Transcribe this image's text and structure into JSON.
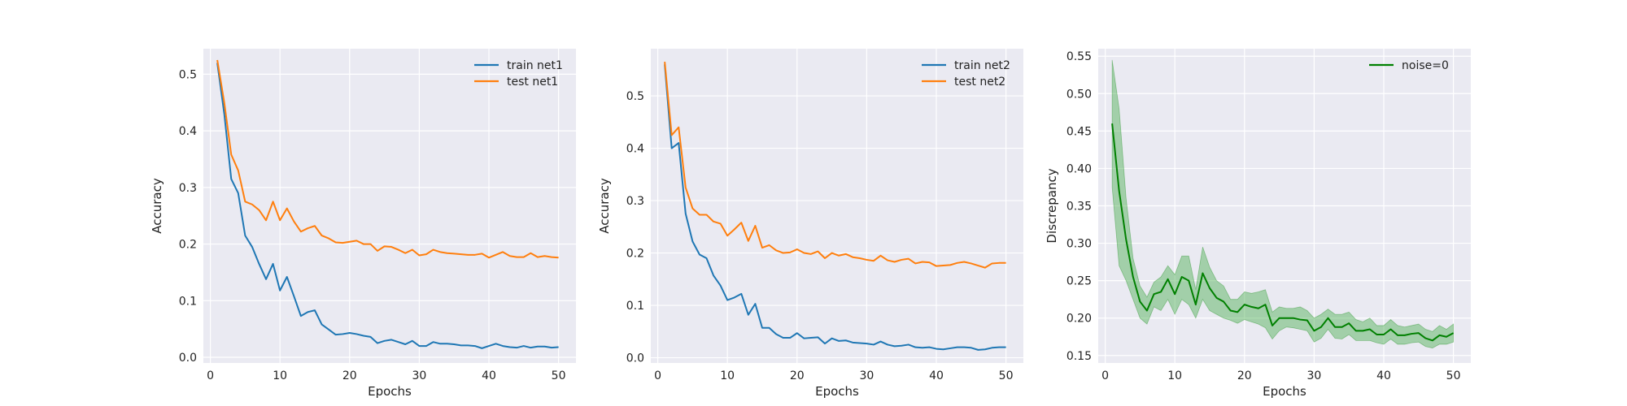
{
  "chart_data": [
    {
      "type": "line",
      "xlabel": "Epochs",
      "ylabel": "Accuracy",
      "xlim": [
        -1,
        52.5
      ],
      "ylim": [
        -0.01,
        0.545
      ],
      "xticks": [
        0,
        10,
        20,
        30,
        40,
        50
      ],
      "yticks": [
        0.0,
        0.1,
        0.2,
        0.3,
        0.4,
        0.5
      ],
      "ytick_labels": [
        "0.0",
        "0.1",
        "0.2",
        "0.3",
        "0.4",
        "0.5"
      ],
      "legend_position": "top-right",
      "grid": true,
      "x": [
        1,
        2,
        3,
        4,
        5,
        6,
        7,
        8,
        9,
        10,
        11,
        12,
        13,
        14,
        15,
        16,
        17,
        18,
        19,
        20,
        21,
        22,
        23,
        24,
        25,
        26,
        27,
        28,
        29,
        30,
        31,
        32,
        33,
        34,
        35,
        36,
        37,
        38,
        39,
        40,
        41,
        42,
        43,
        44,
        45,
        46,
        47,
        48,
        49,
        50
      ],
      "series": [
        {
          "name": "train net1",
          "color": "#1f77b4",
          "values": [
            0.52,
            0.43,
            0.315,
            0.29,
            0.215,
            0.195,
            0.165,
            0.138,
            0.165,
            0.118,
            0.142,
            0.108,
            0.073,
            0.08,
            0.083,
            0.058,
            0.049,
            0.04,
            0.041,
            0.043,
            0.041,
            0.038,
            0.036,
            0.025,
            0.029,
            0.031,
            0.027,
            0.023,
            0.029,
            0.02,
            0.02,
            0.027,
            0.024,
            0.024,
            0.023,
            0.021,
            0.021,
            0.02,
            0.016,
            0.02,
            0.024,
            0.02,
            0.018,
            0.017,
            0.02,
            0.017,
            0.019,
            0.019,
            0.017,
            0.018
          ]
        },
        {
          "name": "test net1",
          "color": "#ff7f0e",
          "values": [
            0.525,
            0.45,
            0.358,
            0.33,
            0.275,
            0.27,
            0.26,
            0.242,
            0.275,
            0.242,
            0.263,
            0.24,
            0.222,
            0.228,
            0.232,
            0.215,
            0.21,
            0.203,
            0.202,
            0.204,
            0.206,
            0.2,
            0.2,
            0.188,
            0.196,
            0.195,
            0.19,
            0.184,
            0.19,
            0.18,
            0.182,
            0.19,
            0.186,
            0.184,
            0.183,
            0.182,
            0.181,
            0.181,
            0.183,
            0.176,
            0.181,
            0.186,
            0.179,
            0.177,
            0.177,
            0.184,
            0.177,
            0.179,
            0.177,
            0.176
          ]
        }
      ]
    },
    {
      "type": "line",
      "xlabel": "Epochs",
      "ylabel": "Accuracy",
      "xlim": [
        -1,
        52.5
      ],
      "ylim": [
        -0.01,
        0.59
      ],
      "xticks": [
        0,
        10,
        20,
        30,
        40,
        50
      ],
      "yticks": [
        0.0,
        0.1,
        0.2,
        0.3,
        0.4,
        0.5
      ],
      "ytick_labels": [
        "0.0",
        "0.1",
        "0.2",
        "0.3",
        "0.4",
        "0.5"
      ],
      "legend_position": "top-right",
      "grid": true,
      "x": [
        1,
        2,
        3,
        4,
        5,
        6,
        7,
        8,
        9,
        10,
        11,
        12,
        13,
        14,
        15,
        16,
        17,
        18,
        19,
        20,
        21,
        22,
        23,
        24,
        25,
        26,
        27,
        28,
        29,
        30,
        31,
        32,
        33,
        34,
        35,
        36,
        37,
        38,
        39,
        40,
        41,
        42,
        43,
        44,
        45,
        46,
        47,
        48,
        49,
        50
      ],
      "series": [
        {
          "name": "train net2",
          "color": "#1f77b4",
          "values": [
            0.56,
            0.4,
            0.41,
            0.275,
            0.222,
            0.197,
            0.19,
            0.157,
            0.138,
            0.11,
            0.115,
            0.122,
            0.082,
            0.103,
            0.057,
            0.057,
            0.045,
            0.038,
            0.038,
            0.047,
            0.037,
            0.038,
            0.039,
            0.027,
            0.037,
            0.032,
            0.033,
            0.029,
            0.028,
            0.027,
            0.025,
            0.031,
            0.025,
            0.022,
            0.023,
            0.025,
            0.02,
            0.019,
            0.02,
            0.017,
            0.016,
            0.018,
            0.02,
            0.02,
            0.019,
            0.015,
            0.016,
            0.019,
            0.02,
            0.02
          ]
        },
        {
          "name": "test net2",
          "color": "#ff7f0e",
          "values": [
            0.565,
            0.425,
            0.44,
            0.325,
            0.285,
            0.273,
            0.273,
            0.26,
            0.256,
            0.233,
            0.245,
            0.258,
            0.223,
            0.252,
            0.21,
            0.215,
            0.205,
            0.2,
            0.201,
            0.207,
            0.2,
            0.198,
            0.203,
            0.19,
            0.2,
            0.195,
            0.198,
            0.192,
            0.19,
            0.187,
            0.185,
            0.195,
            0.186,
            0.183,
            0.187,
            0.189,
            0.18,
            0.183,
            0.182,
            0.175,
            0.176,
            0.177,
            0.181,
            0.183,
            0.18,
            0.176,
            0.172,
            0.18,
            0.181,
            0.181
          ]
        }
      ]
    },
    {
      "type": "line",
      "xlabel": "Epochs",
      "ylabel": "Discrepancy",
      "xlim": [
        -1,
        52.5
      ],
      "ylim": [
        0.14,
        0.56
      ],
      "xticks": [
        0,
        10,
        20,
        30,
        40,
        50
      ],
      "yticks": [
        0.15,
        0.2,
        0.25,
        0.3,
        0.35,
        0.4,
        0.45,
        0.5,
        0.55
      ],
      "ytick_labels": [
        "0.15",
        "0.20",
        "0.25",
        "0.30",
        "0.35",
        "0.40",
        "0.45",
        "0.50",
        "0.55"
      ],
      "legend_position": "top-right",
      "grid": true,
      "x": [
        1,
        2,
        3,
        4,
        5,
        6,
        7,
        8,
        9,
        10,
        11,
        12,
        13,
        14,
        15,
        16,
        17,
        18,
        19,
        20,
        21,
        22,
        23,
        24,
        25,
        26,
        27,
        28,
        29,
        30,
        31,
        32,
        33,
        34,
        35,
        36,
        37,
        38,
        39,
        40,
        41,
        42,
        43,
        44,
        45,
        46,
        47,
        48,
        49,
        50
      ],
      "series": [
        {
          "name": "noise=0",
          "color": "#008000",
          "band_color": "#4caf50",
          "values": [
            0.46,
            0.37,
            0.305,
            0.255,
            0.222,
            0.21,
            0.232,
            0.235,
            0.252,
            0.232,
            0.255,
            0.25,
            0.218,
            0.26,
            0.24,
            0.227,
            0.222,
            0.21,
            0.208,
            0.218,
            0.215,
            0.213,
            0.218,
            0.19,
            0.2,
            0.2,
            0.2,
            0.198,
            0.197,
            0.183,
            0.188,
            0.2,
            0.188,
            0.188,
            0.193,
            0.183,
            0.183,
            0.185,
            0.178,
            0.178,
            0.185,
            0.177,
            0.177,
            0.179,
            0.18,
            0.173,
            0.17,
            0.177,
            0.175,
            0.18
          ],
          "lower": [
            0.375,
            0.27,
            0.25,
            0.225,
            0.2,
            0.192,
            0.215,
            0.21,
            0.225,
            0.205,
            0.225,
            0.218,
            0.2,
            0.225,
            0.21,
            0.205,
            0.2,
            0.197,
            0.193,
            0.198,
            0.195,
            0.192,
            0.187,
            0.172,
            0.183,
            0.188,
            0.187,
            0.185,
            0.183,
            0.168,
            0.173,
            0.185,
            0.173,
            0.172,
            0.178,
            0.17,
            0.17,
            0.17,
            0.167,
            0.165,
            0.172,
            0.165,
            0.165,
            0.167,
            0.168,
            0.162,
            0.16,
            0.165,
            0.165,
            0.168
          ],
          "upper": [
            0.545,
            0.48,
            0.36,
            0.28,
            0.243,
            0.228,
            0.248,
            0.255,
            0.27,
            0.258,
            0.283,
            0.283,
            0.238,
            0.295,
            0.268,
            0.25,
            0.243,
            0.225,
            0.225,
            0.235,
            0.233,
            0.235,
            0.238,
            0.208,
            0.215,
            0.213,
            0.213,
            0.215,
            0.21,
            0.2,
            0.205,
            0.212,
            0.205,
            0.205,
            0.208,
            0.198,
            0.195,
            0.2,
            0.19,
            0.19,
            0.198,
            0.19,
            0.188,
            0.19,
            0.192,
            0.185,
            0.182,
            0.19,
            0.185,
            0.192
          ]
        }
      ]
    }
  ]
}
